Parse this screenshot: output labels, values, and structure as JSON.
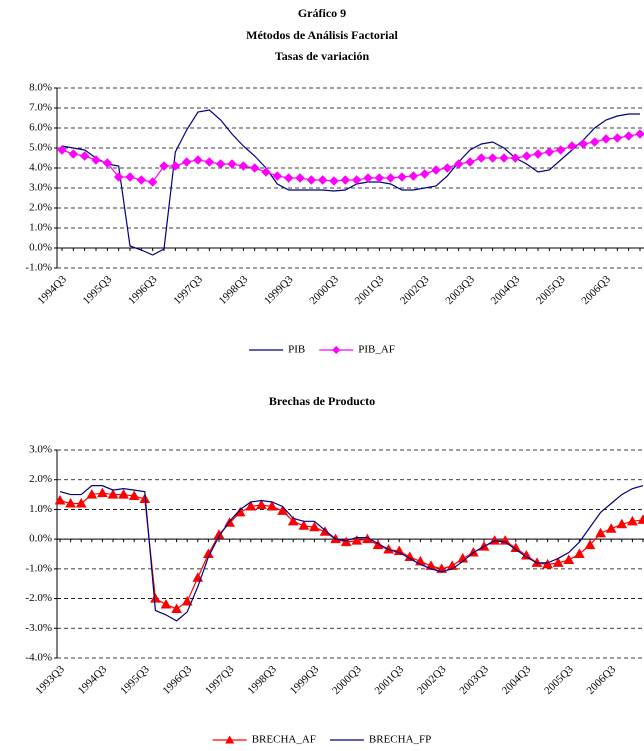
{
  "header": {
    "title": "Gráfico 9",
    "subtitle": "Métodos de Análisis Factorial"
  },
  "chart_data": [
    {
      "type": "line",
      "title": "Tasas de variación",
      "categories": [
        "1994Q3",
        null,
        null,
        null,
        "1995Q3",
        null,
        null,
        null,
        "1996Q3",
        null,
        null,
        null,
        "1997Q3",
        null,
        null,
        null,
        "1998Q3",
        null,
        null,
        null,
        "1999Q3",
        null,
        null,
        null,
        "2000Q3",
        null,
        null,
        null,
        "2001Q3",
        null,
        null,
        null,
        "2002Q3",
        null,
        null,
        null,
        "2003Q3",
        null,
        null,
        null,
        "2004Q3",
        null,
        null,
        null,
        "2005Q3",
        null,
        null,
        null,
        "2006Q3",
        null,
        null,
        null
      ],
      "series": [
        {
          "name": "PIB",
          "color": "#000080",
          "marker": "none",
          "values": [
            5.1,
            5.0,
            4.9,
            4.5,
            4.2,
            4.1,
            0.1,
            -0.1,
            -0.35,
            -0.05,
            4.8,
            5.9,
            6.8,
            6.9,
            6.4,
            5.7,
            5.1,
            4.6,
            4.0,
            3.2,
            2.9,
            2.9,
            2.9,
            2.9,
            2.85,
            2.9,
            3.2,
            3.3,
            3.3,
            3.2,
            2.9,
            2.9,
            3.0,
            3.1,
            3.6,
            4.3,
            4.9,
            5.2,
            5.3,
            5.0,
            4.5,
            4.2,
            3.8,
            3.9,
            4.4,
            4.9,
            5.4,
            6.0,
            6.4,
            6.6,
            6.7,
            6.7
          ]
        },
        {
          "name": "PIB_AF",
          "color": "#ff00ff",
          "marker": "diamond",
          "values": [
            4.9,
            4.7,
            4.6,
            4.4,
            4.25,
            3.55,
            3.55,
            3.4,
            3.3,
            4.1,
            4.1,
            4.3,
            4.4,
            4.3,
            4.2,
            4.2,
            4.1,
            4.0,
            3.8,
            3.6,
            3.5,
            3.5,
            3.4,
            3.4,
            3.35,
            3.4,
            3.4,
            3.5,
            3.5,
            3.5,
            3.55,
            3.6,
            3.7,
            3.9,
            4.0,
            4.2,
            4.3,
            4.5,
            4.5,
            4.5,
            4.5,
            4.6,
            4.7,
            4.8,
            4.9,
            5.1,
            5.2,
            5.3,
            5.45,
            5.5,
            5.6,
            5.7
          ]
        }
      ],
      "ylim": [
        -1,
        8
      ],
      "yticks": [
        {
          "value": -1,
          "label": "-1.0%"
        },
        {
          "value": 0,
          "label": "0.0%"
        },
        {
          "value": 1,
          "label": "1.0%"
        },
        {
          "value": 2,
          "label": "2.0%"
        },
        {
          "value": 3,
          "label": "3.0%"
        },
        {
          "value": 4,
          "label": "4.0%"
        },
        {
          "value": 5,
          "label": "5.0%"
        },
        {
          "value": 6,
          "label": "6.0%"
        },
        {
          "value": 7,
          "label": "7.0%"
        },
        {
          "value": 8,
          "label": "8.0%"
        }
      ],
      "grid": true,
      "legend": "bottom"
    },
    {
      "type": "line",
      "title": "Brechas de Producto",
      "categories": [
        "1993Q3",
        null,
        null,
        null,
        "1994Q3",
        null,
        null,
        null,
        "1995Q3",
        null,
        null,
        null,
        "1996Q3",
        null,
        null,
        null,
        "1997Q3",
        null,
        null,
        null,
        "1998Q3",
        null,
        null,
        null,
        "1999Q3",
        null,
        null,
        null,
        "2000Q3",
        null,
        null,
        null,
        "2001Q3",
        null,
        null,
        null,
        "2002Q3",
        null,
        null,
        null,
        "2003Q3",
        null,
        null,
        null,
        "2004Q3",
        null,
        null,
        null,
        "2005Q3",
        null,
        null,
        null,
        "2006Q3",
        null,
        null,
        null
      ],
      "series": [
        {
          "name": "BRECHA_AF",
          "color": "#ff0000",
          "marker": "triangle",
          "values": [
            1.3,
            1.2,
            1.2,
            1.5,
            1.55,
            1.5,
            1.5,
            1.45,
            1.35,
            -2.0,
            -2.2,
            -2.35,
            -2.1,
            -1.3,
            -0.5,
            0.15,
            0.55,
            0.9,
            1.1,
            1.15,
            1.1,
            0.95,
            0.6,
            0.45,
            0.4,
            0.25,
            0.0,
            -0.1,
            -0.05,
            0.0,
            -0.2,
            -0.35,
            -0.4,
            -0.6,
            -0.75,
            -0.9,
            -1.0,
            -0.9,
            -0.65,
            -0.45,
            -0.25,
            -0.05,
            -0.05,
            -0.3,
            -0.55,
            -0.8,
            -0.85,
            -0.8,
            -0.7,
            -0.5,
            -0.2,
            0.2,
            0.35,
            0.5,
            0.6,
            0.65
          ]
        },
        {
          "name": "BRECHA_FP",
          "color": "#000080",
          "marker": "none",
          "values": [
            1.6,
            1.5,
            1.5,
            1.8,
            1.8,
            1.65,
            1.7,
            1.65,
            1.6,
            -2.4,
            -2.55,
            -2.75,
            -2.45,
            -1.6,
            -0.6,
            0.1,
            0.6,
            1.0,
            1.25,
            1.3,
            1.25,
            1.1,
            0.7,
            0.6,
            0.6,
            0.3,
            0.0,
            -0.05,
            0.05,
            0.05,
            -0.15,
            -0.35,
            -0.45,
            -0.65,
            -0.85,
            -1.0,
            -1.1,
            -1.0,
            -0.75,
            -0.45,
            -0.25,
            -0.05,
            -0.1,
            -0.35,
            -0.6,
            -0.8,
            -0.8,
            -0.65,
            -0.45,
            -0.1,
            0.4,
            0.9,
            1.2,
            1.5,
            1.7,
            1.8
          ]
        }
      ],
      "ylim": [
        -4,
        3
      ],
      "yticks": [
        {
          "value": -4,
          "label": "-4.0%"
        },
        {
          "value": -3,
          "label": "-3.0%"
        },
        {
          "value": -2,
          "label": "-2.0%"
        },
        {
          "value": -1,
          "label": "-1.0%"
        },
        {
          "value": 0,
          "label": "0.0%"
        },
        {
          "value": 1,
          "label": "1.0%"
        },
        {
          "value": 2,
          "label": "2.0%"
        },
        {
          "value": 3,
          "label": "3.0%"
        }
      ],
      "grid": true,
      "legend": "bottom"
    }
  ]
}
